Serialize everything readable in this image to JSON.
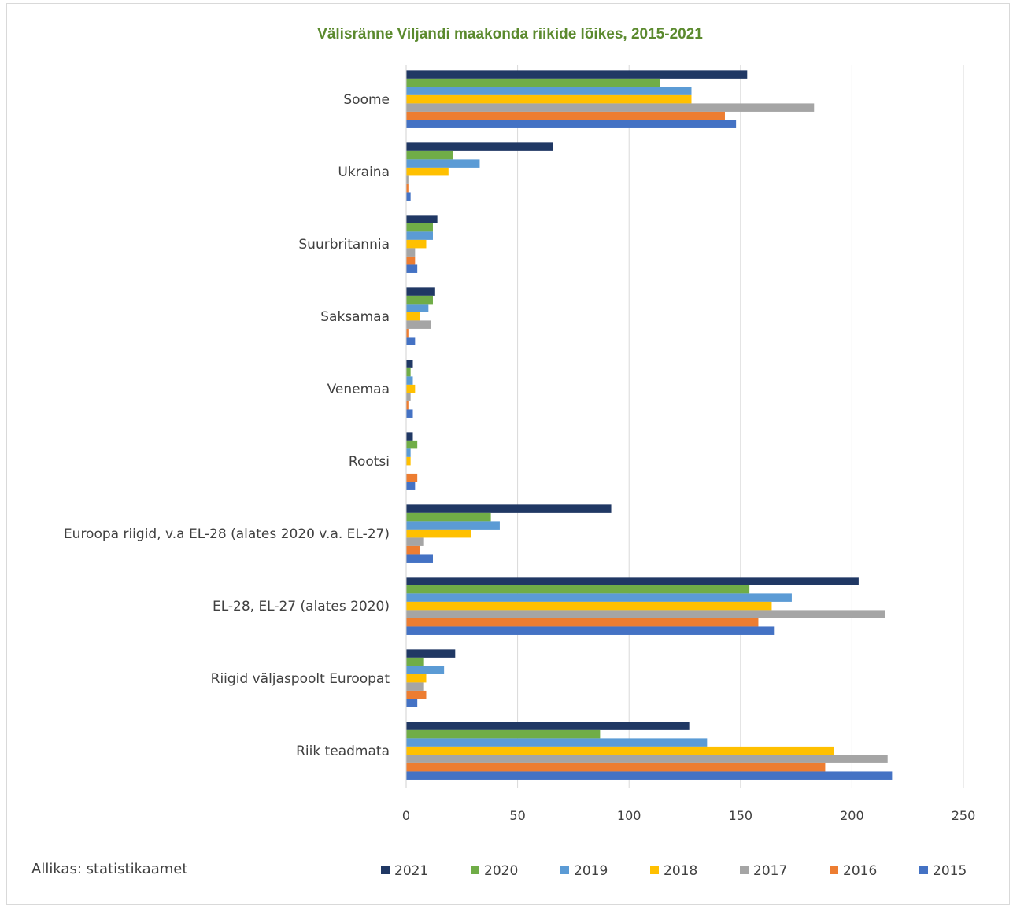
{
  "chart_data": {
    "type": "bar",
    "orientation": "horizontal",
    "title": "Välisränne Viljandi maakonda riikide lõikes, 2015-2021",
    "source": "Allikas: statistikaamet",
    "xlim": [
      0,
      250
    ],
    "ticks": [
      "0",
      "50",
      "100",
      "150",
      "200",
      "250"
    ],
    "grid": true,
    "legend_position": "bottom",
    "categories": [
      "Soome",
      "Ukraina",
      "Suurbritannia",
      "Saksamaa",
      "Venemaa",
      "Rootsi",
      "Euroopa riigid, v.a EL-28 (alates 2020 v.a. EL-27)",
      "EL-28, EL-27 (alates 2020)",
      "Riigid väljaspoolt Euroopat",
      "Riik teadmata"
    ],
    "series": [
      {
        "name": "2021",
        "color": "#203864",
        "values": [
          153,
          66,
          14,
          13,
          3,
          3,
          92,
          203,
          22,
          127
        ]
      },
      {
        "name": "2020",
        "color": "#70ad47",
        "values": [
          114,
          21,
          12,
          12,
          2,
          5,
          38,
          154,
          8,
          87
        ]
      },
      {
        "name": "2019",
        "color": "#5b9bd5",
        "values": [
          128,
          33,
          12,
          10,
          3,
          2,
          42,
          173,
          17,
          135
        ]
      },
      {
        "name": "2018",
        "color": "#ffc000",
        "values": [
          128,
          19,
          9,
          6,
          4,
          2,
          29,
          164,
          9,
          192
        ]
      },
      {
        "name": "2017",
        "color": "#a5a5a5",
        "values": [
          183,
          1,
          4,
          11,
          2,
          0,
          8,
          215,
          8,
          216
        ]
      },
      {
        "name": "2016",
        "color": "#ed7d31",
        "values": [
          143,
          1,
          4,
          1,
          1,
          5,
          6,
          158,
          9,
          188
        ]
      },
      {
        "name": "2015",
        "color": "#4472c4",
        "values": [
          148,
          2,
          5,
          4,
          3,
          4,
          12,
          165,
          5,
          218
        ]
      }
    ]
  }
}
